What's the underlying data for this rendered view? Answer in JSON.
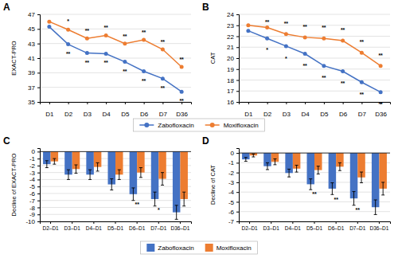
{
  "chart_data": [
    {
      "type": "line",
      "title": "A",
      "y_label": "EXACT-PRO",
      "categories": [
        "D1",
        "D2",
        "D3",
        "D4",
        "D5",
        "D6",
        "D7",
        "D36"
      ],
      "series": [
        {
          "name": "Zabofloxacin",
          "color": "#4472C4",
          "marker": "circle",
          "values": [
            45.3,
            42.9,
            41.7,
            41.6,
            40.5,
            39.2,
            38.2,
            36.4
          ]
        },
        {
          "name": "Moxifloxacin",
          "color": "#ED7D31",
          "marker": "circle",
          "values": [
            46.0,
            44.9,
            43.7,
            44.1,
            43.0,
            43.5,
            42.2,
            39.8
          ]
        }
      ],
      "ylim": [
        35,
        47
      ],
      "yticks": [
        35,
        37,
        39,
        41,
        43,
        45,
        47
      ],
      "grid": true,
      "legend": "bottom",
      "annotations": [
        {
          "text": "*",
          "x": "D2",
          "y": 45.7
        },
        {
          "text": "**",
          "x": "D2",
          "y": 41.9
        },
        {
          "text": "**",
          "x": "D3",
          "y": 44.4
        },
        {
          "text": "**",
          "x": "D3",
          "y": 40.7
        },
        {
          "text": "**",
          "x": "D4",
          "y": 44.8
        },
        {
          "text": "**",
          "x": "D4",
          "y": 40.7
        },
        {
          "text": "**",
          "x": "D5",
          "y": 43.7
        },
        {
          "text": "**",
          "x": "D5",
          "y": 39.5
        },
        {
          "text": "**",
          "x": "D6",
          "y": 44.2
        },
        {
          "text": "**",
          "x": "D6",
          "y": 38.2
        },
        {
          "text": "**",
          "x": "D7",
          "y": 42.9
        },
        {
          "text": "**",
          "x": "D7",
          "y": 37.2
        },
        {
          "text": "**",
          "x": "D36",
          "y": 40.5
        },
        {
          "text": "**",
          "x": "D36",
          "y": 35.5
        }
      ]
    },
    {
      "type": "line",
      "title": "B",
      "y_label": "CAT",
      "categories": [
        "D1",
        "D2",
        "D3",
        "D4",
        "D5",
        "D6",
        "D7",
        "D36"
      ],
      "series": [
        {
          "color": "#4472C4",
          "marker": "circle",
          "values": [
            22.5,
            21.8,
            21.1,
            20.4,
            19.3,
            18.8,
            17.8,
            16.9
          ]
        },
        {
          "color": "#ED7D31",
          "marker": "circle",
          "values": [
            23.0,
            22.8,
            22.2,
            21.9,
            21.8,
            21.6,
            20.5,
            19.3
          ]
        }
      ],
      "ylim": [
        16,
        24
      ],
      "yticks": [
        16,
        17,
        18,
        19,
        20,
        21,
        22,
        23,
        24
      ],
      "grid": true,
      "annotations": [
        {
          "text": "**",
          "x": "D2",
          "y": 23.05
        },
        {
          "text": "*",
          "x": "D2",
          "y": 21.0
        },
        {
          "text": "**",
          "x": "D3",
          "y": 22.9
        },
        {
          "text": "*",
          "x": "D3",
          "y": 20.2
        },
        {
          "text": "**",
          "x": "D4",
          "y": 22.65
        },
        {
          "text": "**",
          "x": "D4",
          "y": 19.5
        },
        {
          "text": "**",
          "x": "D5",
          "y": 22.55
        },
        {
          "text": "**",
          "x": "D5",
          "y": 18.4
        },
        {
          "text": "**",
          "x": "D6",
          "y": 22.35
        },
        {
          "text": "**",
          "x": "D6",
          "y": 17.9
        },
        {
          "text": "**",
          "x": "D7",
          "y": 21.25
        },
        {
          "text": "**",
          "x": "D7",
          "y": 16.9
        },
        {
          "text": "**",
          "x": "D36",
          "y": 20.05
        },
        {
          "text": "**",
          "x": "D36",
          "y": 16.0
        }
      ]
    },
    {
      "type": "bar",
      "title": "C",
      "y_label": "Decline of EXACT-PRO",
      "categories": [
        "D2–D1",
        "D3–D1",
        "D4–D1",
        "D5–D1",
        "D6–D1",
        "D7–D1",
        "D36–D1"
      ],
      "series": [
        {
          "name": "Zabofloxacin",
          "color": "#4472C4",
          "values": [
            -1.8,
            -3.3,
            -3.3,
            -4.7,
            -6.1,
            -6.8,
            -8.7
          ],
          "errors": [
            0.5,
            0.7,
            0.7,
            0.8,
            0.9,
            1.0,
            1.0
          ]
        },
        {
          "name": "Moxifloxacin",
          "color": "#ED7D31",
          "values": [
            -1.4,
            -2.5,
            -2.2,
            -3.3,
            -3.0,
            -3.9,
            -6.8
          ],
          "errors": [
            0.4,
            0.6,
            0.6,
            0.7,
            0.7,
            0.9,
            1.0
          ]
        }
      ],
      "ylim": [
        -10,
        0.5
      ],
      "yticks": [
        -10,
        -9,
        -8,
        -7,
        -6,
        -5,
        -4,
        -3,
        -2,
        -1,
        0
      ],
      "grid": true,
      "legend": "bottom",
      "annotations": [
        {
          "text": "**",
          "x": "D6–D1",
          "y": -7.25
        },
        {
          "text": "*",
          "x": "D7–D1",
          "y": -8.05
        }
      ]
    },
    {
      "type": "bar",
      "title": "D",
      "y_label": "Decline of CAT",
      "categories": [
        "D2–D1",
        "D3–D1",
        "D4–D1",
        "D5–D1",
        "D6–D1",
        "D7–D1",
        "D36–D1"
      ],
      "series": [
        {
          "color": "#4472C4",
          "values": [
            -0.65,
            -1.35,
            -2.05,
            -3.2,
            -3.65,
            -4.65,
            -5.55
          ],
          "errors": [
            0.2,
            0.35,
            0.4,
            0.55,
            0.6,
            0.7,
            0.75
          ]
        },
        {
          "color": "#ED7D31",
          "values": [
            -0.25,
            -0.9,
            -1.6,
            -1.75,
            -1.4,
            -2.5,
            -3.65
          ],
          "errors": [
            0.15,
            0.3,
            0.35,
            0.4,
            0.4,
            0.55,
            0.65
          ]
        }
      ],
      "ylim": [
        -7,
        0.5
      ],
      "yticks": [
        -7,
        -6,
        -5,
        -4,
        -3,
        -2,
        -1,
        0
      ],
      "grid": true,
      "annotations": [
        {
          "text": "**",
          "x": "D5–D1",
          "y": -4.0
        },
        {
          "text": "**",
          "x": "D6–D1",
          "y": -4.5
        },
        {
          "text": "**",
          "x": "D7–D1",
          "y": -5.6
        }
      ]
    }
  ]
}
